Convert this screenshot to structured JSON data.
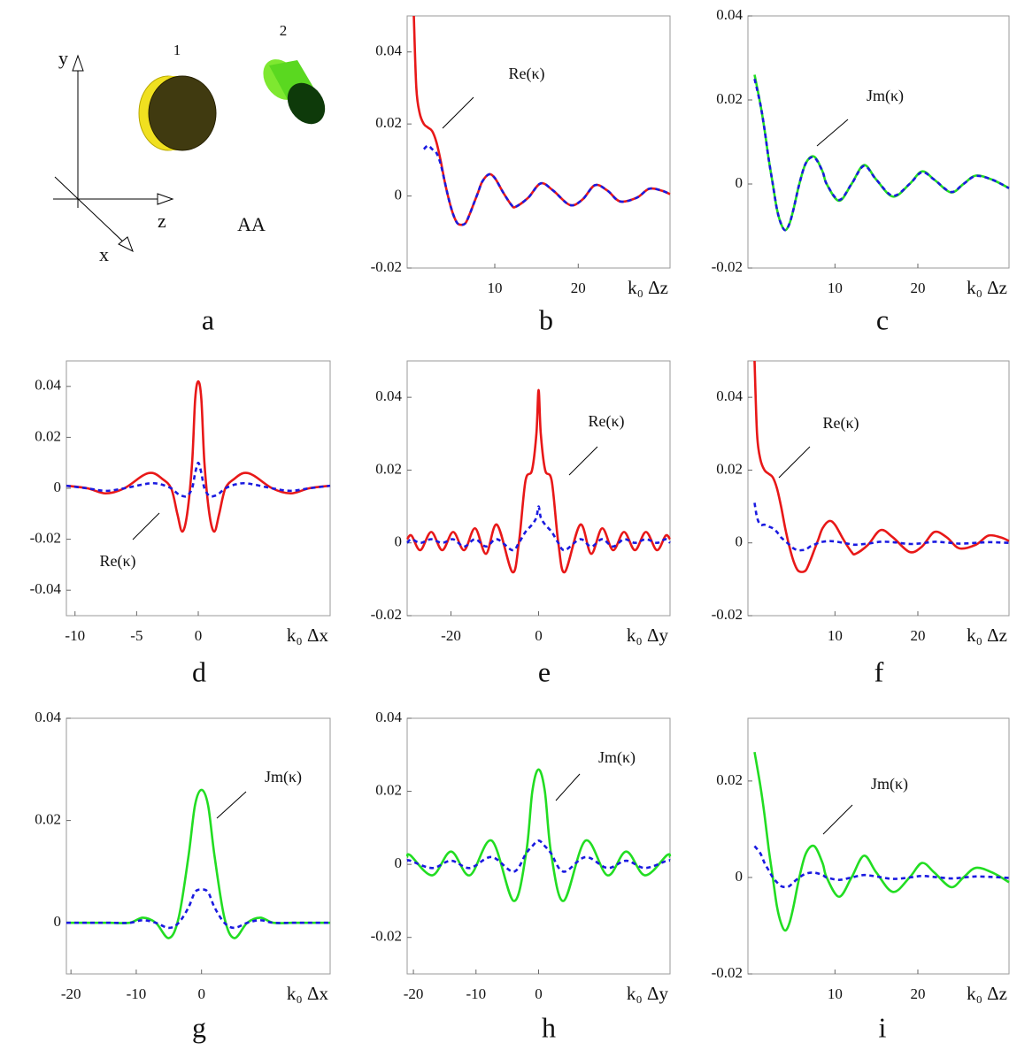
{
  "diagram": {
    "axis_y": "y",
    "axis_z": "z",
    "axis_x": "x",
    "object_1": "1",
    "object_2": "2",
    "caption": "AA",
    "panel": "a"
  },
  "chart_data": [
    {
      "type": "line",
      "panel": "b",
      "annotation": "Re(κ)",
      "x_label": "k₀ Δz",
      "xlim": [
        -0.5,
        31
      ],
      "xticks": [
        10,
        20
      ],
      "ylim": [
        -0.02,
        0.05
      ],
      "yticks": [
        -0.02,
        0,
        0.02,
        0.04
      ],
      "x": [
        0.3,
        0.6,
        1,
        1.5,
        2,
        2.5,
        3,
        3.5,
        4,
        4.5,
        5,
        5.5,
        6,
        6.5,
        7,
        7.5,
        8,
        8.5,
        9.3,
        10,
        11,
        12,
        12.5,
        14,
        15.5,
        17,
        19,
        20.5,
        22,
        23.5,
        25,
        27,
        28.5,
        30,
        31
      ],
      "series": [
        {
          "color": "#e81818",
          "line_style": "solid",
          "values": [
            0.05,
            0.03,
            0.023,
            0.02,
            0.019,
            0.018,
            0.015,
            0.01,
            0.004,
            -0.001,
            -0.005,
            -0.0075,
            -0.008,
            -0.0075,
            -0.005,
            -0.002,
            0.001,
            0.004,
            0.006,
            0.005,
            0.001,
            -0.0025,
            -0.003,
            -0.0005,
            0.0035,
            0.0015,
            -0.0025,
            -0.001,
            0.003,
            0.0015,
            -0.0015,
            -0.0005,
            0.002,
            0.0015,
            0.0005
          ]
        },
        {
          "color": "#1a1ae0",
          "line_style": "dashed",
          "values": [
            null,
            null,
            null,
            0.013,
            0.014,
            0.013,
            0.012,
            0.009,
            0.004,
            -0.001,
            -0.005,
            -0.0075,
            -0.008,
            -0.0075,
            -0.005,
            -0.002,
            0.001,
            0.004,
            0.006,
            0.005,
            0.001,
            -0.0025,
            -0.003,
            -0.0005,
            0.0035,
            0.0015,
            -0.0025,
            -0.001,
            0.003,
            0.0015,
            -0.0015,
            -0.0005,
            0.002,
            0.0015,
            0.0005
          ]
        }
      ]
    },
    {
      "type": "line",
      "panel": "c",
      "annotation": "Jm(κ)",
      "x_label": "k₀ Δz",
      "xlim": [
        -0.5,
        31
      ],
      "xticks": [
        10,
        20
      ],
      "ylim": [
        -0.02,
        0.04
      ],
      "yticks": [
        -0.02,
        0,
        0.02,
        0.04
      ],
      "x": [
        0.3,
        1,
        1.5,
        2,
        2.5,
        3,
        3.5,
        4,
        4.5,
        5,
        5.7,
        6.5,
        7.5,
        8.5,
        9,
        10.5,
        12,
        13.5,
        15,
        17,
        19,
        20.5,
        22,
        24,
        25.5,
        27,
        29,
        31
      ],
      "series": [
        {
          "color": "#22dd22",
          "line_style": "solid",
          "values": [
            0.026,
            0.019,
            0.013,
            0.006,
            0,
            -0.006,
            -0.0095,
            -0.011,
            -0.0095,
            -0.006,
            0,
            0.005,
            0.0065,
            0.003,
            0,
            -0.004,
            0,
            0.0045,
            0.001,
            -0.003,
            0,
            0.003,
            0.001,
            -0.002,
            0,
            0.002,
            0.001,
            -0.001
          ]
        },
        {
          "color": "#1a1ae0",
          "line_style": "dashed",
          "values": [
            0.025,
            0.019,
            0.013,
            0.006,
            0,
            -0.006,
            -0.0095,
            -0.011,
            -0.0095,
            -0.006,
            0,
            0.005,
            0.0063,
            0.003,
            0,
            -0.0038,
            0,
            0.0043,
            0.001,
            -0.0028,
            0,
            0.0028,
            0.001,
            -0.0019,
            0,
            0.0019,
            0.001,
            -0.001
          ]
        }
      ]
    },
    {
      "type": "line",
      "panel": "d",
      "annotation": "Re(κ)",
      "x_label": "k₀ Δx",
      "xlim": [
        -10.7,
        10.7
      ],
      "xticks": [
        -10,
        -5,
        0
      ],
      "ylim": [
        -0.05,
        0.05
      ],
      "yticks": [
        -0.04,
        -0.02,
        0,
        0.02,
        0.04
      ],
      "x": [
        -10.7,
        -9,
        -7.5,
        -6,
        -4.5,
        -3.7,
        -3,
        -2.2,
        -1.7,
        -1.3,
        -0.9,
        -0.5,
        -0.25,
        0,
        0.25,
        0.5,
        0.9,
        1.3,
        1.7,
        2.2,
        3,
        3.7,
        4.5,
        6,
        7.5,
        9,
        10.7
      ],
      "series": [
        {
          "color": "#e81818",
          "line_style": "solid",
          "values": [
            0.001,
            0,
            -0.002,
            0,
            0.005,
            0.006,
            0.004,
            0,
            -0.01,
            -0.017,
            -0.01,
            0.01,
            0.035,
            0.042,
            0.035,
            0.01,
            -0.01,
            -0.017,
            -0.01,
            0,
            0.004,
            0.006,
            0.005,
            0,
            -0.002,
            0,
            0.001
          ]
        },
        {
          "color": "#1a1ae0",
          "line_style": "dashed",
          "values": [
            0.001,
            0,
            -0.001,
            0,
            0.0015,
            0.002,
            0.0015,
            0,
            -0.002,
            -0.003,
            -0.003,
            0,
            0.006,
            0.01,
            0.006,
            0,
            -0.003,
            -0.003,
            -0.002,
            0,
            0.0015,
            0.002,
            0.0015,
            0,
            -0.001,
            0,
            0.001
          ]
        }
      ]
    },
    {
      "type": "line",
      "panel": "e",
      "annotation": "Re(κ)",
      "x_label": "k₀ Δy",
      "xlim": [
        -30,
        30
      ],
      "xticks": [
        -20,
        0
      ],
      "ylim": [
        -0.02,
        0.05
      ],
      "yticks": [
        -0.02,
        0,
        0.02,
        0.04
      ],
      "x": [
        -30,
        -29,
        -27,
        -24.5,
        -22,
        -19.5,
        -17,
        -14.5,
        -12,
        -9.5,
        -6,
        -4.5,
        -3,
        -1.5,
        -0.5,
        0,
        0.5,
        1.5,
        3,
        4.5,
        6,
        9.5,
        12,
        14.5,
        17,
        19.5,
        22,
        24.5,
        27,
        29,
        30
      ],
      "series": [
        {
          "color": "#e81818",
          "line_style": "solid",
          "values": [
            0.001,
            0.002,
            -0.002,
            0.003,
            -0.002,
            0.003,
            -0.002,
            0.004,
            -0.003,
            0.005,
            -0.008,
            0,
            0.017,
            0.02,
            0.03,
            0.042,
            0.03,
            0.02,
            0.017,
            0,
            -0.008,
            0.005,
            -0.003,
            0.004,
            -0.002,
            0.003,
            -0.002,
            0.003,
            -0.002,
            0.002,
            0.001
          ]
        },
        {
          "color": "#1a1ae0",
          "line_style": "dashed",
          "values": [
            0,
            0.001,
            0,
            0.001,
            0,
            0.001,
            -0.001,
            0.001,
            -0.001,
            0.001,
            -0.002,
            0,
            0.003,
            0.005,
            0.007,
            0.01,
            0.007,
            0.005,
            0.003,
            0,
            -0.002,
            0.001,
            -0.001,
            0.001,
            -0.001,
            0.001,
            0,
            0.001,
            0,
            0.001,
            0
          ]
        }
      ]
    },
    {
      "type": "line",
      "panel": "f",
      "annotation": "Re(κ)",
      "x_label": "k₀ Δz",
      "xlim": [
        -0.5,
        31
      ],
      "xticks": [
        10,
        20
      ],
      "ylim": [
        -0.02,
        0.05
      ],
      "yticks": [
        -0.02,
        0,
        0.02,
        0.04
      ],
      "x": [
        0.3,
        0.6,
        1,
        1.5,
        2,
        2.5,
        3,
        3.5,
        4,
        4.5,
        5,
        5.5,
        6,
        6.5,
        7,
        7.5,
        8,
        8.5,
        9.3,
        10,
        11,
        12,
        12.5,
        14,
        15.5,
        17,
        19,
        20.5,
        22,
        23.5,
        25,
        27,
        28.5,
        30,
        31
      ],
      "series": [
        {
          "color": "#e81818",
          "line_style": "solid",
          "values": [
            0.05,
            0.03,
            0.023,
            0.02,
            0.019,
            0.018,
            0.015,
            0.01,
            0.004,
            -0.001,
            -0.005,
            -0.0075,
            -0.008,
            -0.0075,
            -0.005,
            -0.002,
            0.001,
            0.004,
            0.006,
            0.005,
            0.001,
            -0.0025,
            -0.003,
            -0.0005,
            0.0035,
            0.0015,
            -0.0025,
            -0.001,
            0.003,
            0.0015,
            -0.0015,
            -0.0005,
            0.002,
            0.0015,
            0.0005
          ]
        },
        {
          "color": "#1a1ae0",
          "line_style": "dashed",
          "values": [
            0.011,
            0.007,
            0.005,
            0.005,
            0.0045,
            0.004,
            0.003,
            0.0015,
            0.0005,
            -0.0005,
            -0.0015,
            -0.002,
            -0.002,
            -0.0018,
            -0.001,
            -0.0005,
            0,
            0.0003,
            0.0005,
            0.0004,
            0,
            -0.0004,
            -0.0005,
            -0.0002,
            0.0003,
            0.0002,
            -0.0003,
            -0.0001,
            0.0003,
            0.0001,
            -0.0002,
            0,
            0.0002,
            0.0001,
            0
          ]
        }
      ]
    },
    {
      "type": "line",
      "panel": "g",
      "annotation": "Jm(κ)",
      "x_label": "k₀ Δx",
      "xlim": [
        -20.7,
        19.7
      ],
      "xticks": [
        -20,
        -10,
        0
      ],
      "ylim": [
        -0.01,
        0.04
      ],
      "yticks": [
        0,
        0.02,
        0.04
      ],
      "x": [
        -20.7,
        -17,
        -14,
        -11,
        -9,
        -7,
        -5,
        -3.5,
        -2,
        -1,
        0,
        1,
        2,
        3.5,
        5,
        7,
        9,
        11,
        14,
        17,
        19.7
      ],
      "series": [
        {
          "color": "#22dd22",
          "line_style": "solid",
          "values": [
            0,
            0,
            0,
            0,
            0.001,
            0,
            -0.003,
            0.001,
            0.013,
            0.023,
            0.026,
            0.023,
            0.013,
            0.001,
            -0.003,
            0,
            0.001,
            0,
            0,
            0,
            0
          ]
        },
        {
          "color": "#1a1ae0",
          "line_style": "dashed",
          "values": [
            0,
            0,
            0,
            0,
            0.0005,
            0,
            -0.001,
            0,
            0.003,
            0.006,
            0.0065,
            0.006,
            0.003,
            0,
            -0.001,
            0,
            0.0005,
            0,
            0,
            0,
            0
          ]
        }
      ]
    },
    {
      "type": "line",
      "panel": "h",
      "annotation": "Jm(κ)",
      "x_label": "k₀ Δy",
      "xlim": [
        -21,
        21
      ],
      "xticks": [
        -20,
        -10,
        0
      ],
      "ylim": [
        -0.03,
        0.04
      ],
      "yticks": [
        -0.02,
        0,
        0.02,
        0.04
      ],
      "x": [
        -21,
        -20.5,
        -17,
        -14,
        -11,
        -7.5,
        -4,
        -2,
        -1,
        0,
        1,
        2,
        4,
        7.5,
        11,
        14,
        17,
        20.5,
        21
      ],
      "series": [
        {
          "color": "#22dd22",
          "line_style": "solid",
          "values": [
            0.002,
            0.0025,
            -0.003,
            0.0035,
            -0.003,
            0.0065,
            -0.01,
            0.003,
            0.02,
            0.026,
            0.02,
            0.003,
            -0.01,
            0.0065,
            -0.003,
            0.0035,
            -0.003,
            0.0025,
            0.002
          ]
        },
        {
          "color": "#1a1ae0",
          "line_style": "dashed",
          "values": [
            0.001,
            0.001,
            -0.001,
            0.001,
            -0.001,
            0.002,
            -0.002,
            0.003,
            0.005,
            0.0065,
            0.005,
            0.003,
            -0.002,
            0.002,
            -0.001,
            0.001,
            -0.001,
            0.001,
            0.001
          ]
        }
      ]
    },
    {
      "type": "line",
      "panel": "i",
      "annotation": "Jm(κ)",
      "x_label": "k₀ Δz",
      "xlim": [
        -0.5,
        31
      ],
      "xticks": [
        10,
        20
      ],
      "ylim": [
        -0.02,
        0.033
      ],
      "yticks": [
        -0.02,
        0,
        0.02
      ],
      "x": [
        0.3,
        1,
        1.5,
        2,
        2.5,
        3,
        3.5,
        4,
        4.5,
        5,
        5.7,
        6.5,
        7.5,
        8.5,
        9,
        10.5,
        12,
        13.5,
        15,
        17,
        19,
        20.5,
        22,
        24,
        25.5,
        27,
        29,
        31
      ],
      "series": [
        {
          "color": "#22dd22",
          "line_style": "solid",
          "values": [
            0.026,
            0.019,
            0.013,
            0.006,
            0,
            -0.006,
            -0.0095,
            -0.011,
            -0.0095,
            -0.006,
            0,
            0.005,
            0.0065,
            0.003,
            0,
            -0.004,
            0,
            0.0045,
            0.001,
            -0.003,
            0,
            0.003,
            0.001,
            -0.002,
            0,
            0.002,
            0.001,
            -0.001
          ]
        },
        {
          "color": "#1a1ae0",
          "line_style": "dashed",
          "values": [
            0.0065,
            0.005,
            0.003,
            0.0015,
            0,
            -0.001,
            -0.0018,
            -0.002,
            -0.0018,
            -0.001,
            0,
            0.0008,
            0.001,
            0.0005,
            0,
            -0.0005,
            0,
            0.0005,
            0.0002,
            -0.0003,
            0,
            0.0003,
            0.0001,
            -0.0002,
            0,
            0.0002,
            0.0001,
            -0.0001
          ]
        }
      ]
    }
  ]
}
